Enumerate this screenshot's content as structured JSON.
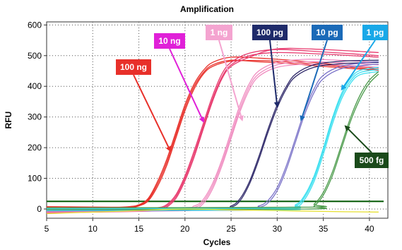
{
  "chart_data": {
    "type": "line",
    "title": "Amplification",
    "xlabel": "Cycles",
    "ylabel": "RFU",
    "xlim": [
      5,
      42
    ],
    "ylim": [
      -30,
      610
    ],
    "xticks": [
      5,
      10,
      15,
      20,
      25,
      30,
      35,
      40
    ],
    "yticks": [
      0,
      100,
      200,
      300,
      400,
      500,
      600
    ],
    "grid": true,
    "threshold": 25,
    "series": [
      {
        "name": "100 ng",
        "color": "#e8302a",
        "curves": [
          [
            [
              5,
              5
            ],
            [
              12,
              3
            ],
            [
              14,
              6
            ],
            [
              15,
              12
            ],
            [
              16,
              30
            ],
            [
              17,
              80
            ],
            [
              18,
              150
            ],
            [
              19,
              240
            ],
            [
              20,
              330
            ],
            [
              21,
              400
            ],
            [
              22,
              445
            ],
            [
              23,
              470
            ],
            [
              25,
              485
            ],
            [
              28,
              480
            ],
            [
              31,
              475
            ],
            [
              35,
              465
            ],
            [
              38,
              458
            ],
            [
              41,
              452
            ]
          ],
          [
            [
              5,
              -2
            ],
            [
              12,
              0
            ],
            [
              14,
              4
            ],
            [
              15,
              10
            ],
            [
              16,
              26
            ],
            [
              17,
              72
            ],
            [
              18,
              140
            ],
            [
              19,
              230
            ],
            [
              20,
              320
            ],
            [
              21,
              392
            ],
            [
              22,
              440
            ],
            [
              23,
              465
            ],
            [
              25,
              482
            ],
            [
              28,
              484
            ],
            [
              31,
              480
            ],
            [
              35,
              470
            ],
            [
              38,
              462
            ],
            [
              41,
              455
            ]
          ],
          [
            [
              5,
              8
            ],
            [
              12,
              6
            ],
            [
              14,
              8
            ],
            [
              15,
              14
            ],
            [
              16,
              34
            ],
            [
              17,
              88
            ],
            [
              18,
              160
            ],
            [
              19,
              250
            ],
            [
              20,
              340
            ],
            [
              21,
              408
            ],
            [
              22,
              452
            ],
            [
              23,
              478
            ],
            [
              25,
              495
            ],
            [
              28,
              492
            ],
            [
              31,
              486
            ],
            [
              35,
              475
            ],
            [
              38,
              466
            ],
            [
              41,
              460
            ]
          ]
        ]
      },
      {
        "name": "10 ng",
        "color": "#e83a6e",
        "curves": [
          [
            [
              5,
              -8
            ],
            [
              15,
              -4
            ],
            [
              17,
              0
            ],
            [
              18,
              10
            ],
            [
              19,
              40
            ],
            [
              20,
              100
            ],
            [
              21,
              180
            ],
            [
              22,
              270
            ],
            [
              23,
              360
            ],
            [
              24,
              430
            ],
            [
              25,
              470
            ],
            [
              27,
              500
            ],
            [
              30,
              510
            ],
            [
              35,
              505
            ],
            [
              41,
              495
            ]
          ],
          [
            [
              5,
              -12
            ],
            [
              15,
              -8
            ],
            [
              17,
              -4
            ],
            [
              18,
              6
            ],
            [
              19,
              34
            ],
            [
              20,
              92
            ],
            [
              21,
              170
            ],
            [
              22,
              262
            ],
            [
              23,
              352
            ],
            [
              24,
              424
            ],
            [
              25,
              465
            ],
            [
              27,
              495
            ],
            [
              30,
              522
            ],
            [
              35,
              520
            ],
            [
              41,
              510
            ]
          ],
          [
            [
              5,
              0
            ],
            [
              15,
              2
            ],
            [
              17,
              4
            ],
            [
              18,
              14
            ],
            [
              19,
              46
            ],
            [
              20,
              108
            ],
            [
              21,
              190
            ],
            [
              22,
              280
            ],
            [
              23,
              370
            ],
            [
              24,
              440
            ],
            [
              25,
              478
            ],
            [
              27,
              508
            ],
            [
              30,
              520
            ],
            [
              35,
              512
            ],
            [
              41,
              500
            ]
          ]
        ]
      },
      {
        "name": "1 ng",
        "color": "#f08cc0",
        "curves": [
          [
            [
              5,
              -5
            ],
            [
              19,
              -2
            ],
            [
              21,
              5
            ],
            [
              22,
              25
            ],
            [
              23,
              75
            ],
            [
              24,
              150
            ],
            [
              25,
              240
            ],
            [
              26,
              330
            ],
            [
              27,
              400
            ],
            [
              28,
              440
            ],
            [
              30,
              470
            ],
            [
              33,
              480
            ],
            [
              36,
              478
            ],
            [
              41,
              470
            ]
          ],
          [
            [
              5,
              2
            ],
            [
              19,
              4
            ],
            [
              21,
              10
            ],
            [
              22,
              32
            ],
            [
              23,
              84
            ],
            [
              24,
              160
            ],
            [
              25,
              252
            ],
            [
              26,
              342
            ],
            [
              27,
              410
            ],
            [
              28,
              450
            ],
            [
              30,
              478
            ],
            [
              33,
              488
            ],
            [
              36,
              486
            ],
            [
              41,
              478
            ]
          ],
          [
            [
              5,
              -10
            ],
            [
              19,
              -6
            ],
            [
              21,
              0
            ],
            [
              22,
              18
            ],
            [
              23,
              66
            ],
            [
              24,
              140
            ],
            [
              25,
              230
            ],
            [
              26,
              320
            ],
            [
              27,
              390
            ],
            [
              28,
              432
            ],
            [
              30,
              462
            ],
            [
              33,
              472
            ],
            [
              36,
              470
            ],
            [
              41,
              462
            ]
          ]
        ]
      },
      {
        "name": "100 pg",
        "color": "#302a6a",
        "curves": [
          [
            [
              5,
              0
            ],
            [
              23,
              2
            ],
            [
              25,
              10
            ],
            [
              26,
              35
            ],
            [
              27,
              90
            ],
            [
              28,
              170
            ],
            [
              29,
              260
            ],
            [
              30,
              340
            ],
            [
              31,
              400
            ],
            [
              32,
              440
            ],
            [
              34,
              470
            ],
            [
              37,
              482
            ],
            [
              41,
              485
            ]
          ],
          [
            [
              5,
              -4
            ],
            [
              23,
              -2
            ],
            [
              25,
              6
            ],
            [
              26,
              28
            ],
            [
              27,
              82
            ],
            [
              28,
              160
            ],
            [
              29,
              250
            ],
            [
              30,
              330
            ],
            [
              31,
              392
            ],
            [
              32,
              432
            ],
            [
              34,
              462
            ],
            [
              37,
              474
            ],
            [
              41,
              478
            ]
          ]
        ]
      },
      {
        "name": "10 pg",
        "color": "#7a72c8",
        "curves": [
          [
            [
              5,
              -6
            ],
            [
              26,
              -4
            ],
            [
              28,
              5
            ],
            [
              29,
              20
            ],
            [
              30,
              60
            ],
            [
              31,
              130
            ],
            [
              32,
              220
            ],
            [
              33,
              310
            ],
            [
              34,
              380
            ],
            [
              35,
              425
            ],
            [
              37,
              458
            ],
            [
              40,
              470
            ],
            [
              41,
              472
            ]
          ],
          [
            [
              5,
              2
            ],
            [
              26,
              3
            ],
            [
              28,
              10
            ],
            [
              29,
              28
            ],
            [
              30,
              70
            ],
            [
              31,
              142
            ],
            [
              32,
              232
            ],
            [
              33,
              322
            ],
            [
              34,
              392
            ],
            [
              35,
              436
            ],
            [
              37,
              466
            ],
            [
              40,
              478
            ],
            [
              41,
              480
            ]
          ]
        ]
      },
      {
        "name": "1 pg",
        "color": "#3ee0f0",
        "curves": [
          [
            [
              5,
              0
            ],
            [
              30,
              2
            ],
            [
              32,
              10
            ],
            [
              33,
              40
            ],
            [
              34,
              100
            ],
            [
              35,
              190
            ],
            [
              36,
              290
            ],
            [
              37,
              370
            ],
            [
              38,
              420
            ],
            [
              39,
              445
            ],
            [
              41,
              455
            ]
          ],
          [
            [
              5,
              -5
            ],
            [
              30,
              -3
            ],
            [
              32,
              4
            ],
            [
              33,
              32
            ],
            [
              34,
              90
            ],
            [
              35,
              178
            ],
            [
              36,
              278
            ],
            [
              37,
              360
            ],
            [
              38,
              412
            ],
            [
              39,
              438
            ],
            [
              41,
              448
            ]
          ],
          [
            [
              5,
              3
            ],
            [
              30,
              5
            ],
            [
              32,
              14
            ],
            [
              33,
              46
            ],
            [
              34,
              108
            ],
            [
              35,
              198
            ],
            [
              36,
              298
            ],
            [
              37,
              378
            ],
            [
              38,
              428
            ],
            [
              39,
              452
            ],
            [
              41,
              462
            ]
          ]
        ]
      },
      {
        "name": "500 fg",
        "color": "#4a9a4a",
        "curves": [
          [
            [
              5,
              -2
            ],
            [
              33,
              0
            ],
            [
              34,
              10
            ],
            [
              35,
              45
            ],
            [
              36,
              110
            ],
            [
              37,
              200
            ],
            [
              38,
              290
            ],
            [
              39,
              360
            ],
            [
              40,
              410
            ],
            [
              41,
              440
            ]
          ],
          [
            [
              5,
              4
            ],
            [
              33,
              6
            ],
            [
              34,
              16
            ],
            [
              35,
              54
            ],
            [
              36,
              122
            ],
            [
              37,
              212
            ],
            [
              38,
              302
            ],
            [
              39,
              372
            ],
            [
              40,
              420
            ],
            [
              41,
              448
            ]
          ]
        ]
      },
      {
        "name": "",
        "color": "#e6e030",
        "curves": [
          [
            [
              5,
              -15
            ],
            [
              10,
              -10
            ],
            [
              15,
              -5
            ],
            [
              20,
              0
            ],
            [
              25,
              -3
            ],
            [
              30,
              -5
            ],
            [
              35,
              -8
            ],
            [
              41,
              -10
            ]
          ]
        ]
      }
    ],
    "annotations": [
      {
        "text": "100 ng",
        "bg": "#e8302a",
        "tip": [
          18.4,
          190
        ]
      },
      {
        "text": "10 ng",
        "bg": "#e020d8",
        "tip": [
          22,
          285
        ]
      },
      {
        "text": "1 ng",
        "bg": "#f4a4d0",
        "tip": [
          26.2,
          290
        ]
      },
      {
        "text": "100 pg",
        "bg": "#1e2a6a",
        "tip": [
          30,
          335
        ]
      },
      {
        "text": "10 pg",
        "bg": "#1a6ab8",
        "tip": [
          32.6,
          290
        ]
      },
      {
        "text": "1 pg",
        "bg": "#18a8e8",
        "tip": [
          37,
          390
        ]
      },
      {
        "text": "500 fg",
        "bg": "#1a4a1a",
        "tip": [
          37.4,
          270
        ]
      }
    ]
  }
}
